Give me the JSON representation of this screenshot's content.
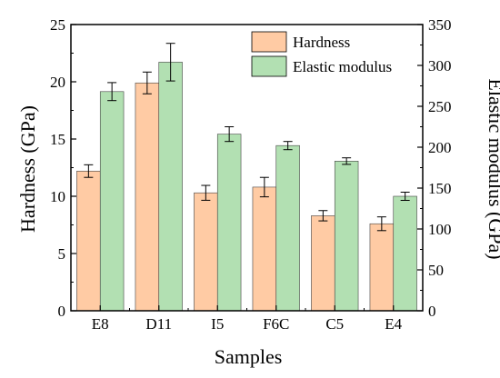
{
  "chart_data": {
    "type": "bar",
    "title": "",
    "xlabel": "Samples",
    "ylabel_left": "Hardness (GPa)",
    "ylabel_right": "Elastic modulus (GPa)",
    "categories": [
      "E8",
      "D11",
      "I5",
      "F6C",
      "C5",
      "E4"
    ],
    "ylim_left": [
      0,
      25
    ],
    "ylim_right": [
      0,
      350
    ],
    "yticks_left": [
      0,
      5,
      10,
      15,
      20,
      25
    ],
    "yticks_right": [
      0,
      50,
      100,
      150,
      200,
      250,
      300,
      350
    ],
    "grid": false,
    "legend_position": "top-right",
    "series": [
      {
        "name": "Hardness",
        "axis": "left",
        "color": "#FFCBA4",
        "values": [
          12.2,
          19.9,
          10.3,
          10.8,
          8.3,
          7.6
        ],
        "errors": [
          0.55,
          0.95,
          0.65,
          0.85,
          0.45,
          0.6
        ]
      },
      {
        "name": "Elastic modulus",
        "axis": "right",
        "color": "#B2E0B2",
        "values": [
          268,
          304,
          216,
          202,
          183,
          140
        ],
        "errors": [
          11,
          23,
          9,
          5,
          4,
          5
        ]
      }
    ]
  }
}
